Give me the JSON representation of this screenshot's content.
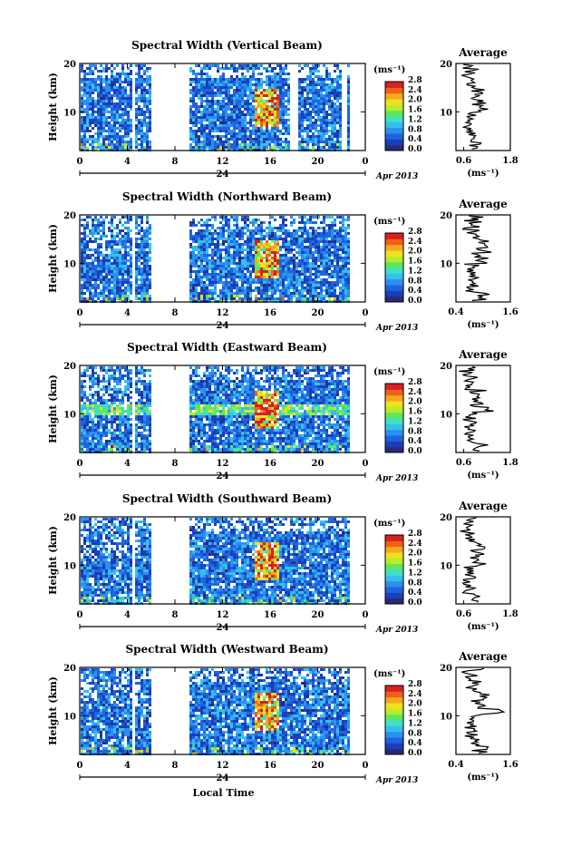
{
  "figure": {
    "xlabel": "Local Time",
    "date_label": "Apr 2013",
    "colorbar_unit": "(ms⁻¹)",
    "avg_title": "Average",
    "avg_xlabel": "(ms⁻¹)"
  },
  "chart_data": [
    {
      "type": "heatmap",
      "title": "Spectral Width (Vertical Beam)",
      "xlabel": "",
      "ylabel": "Height (km)",
      "x_ticks": [
        "0",
        "4",
        "8",
        "12",
        "16",
        "20",
        "0"
      ],
      "date_tick": "24",
      "y_ticks": [
        "10",
        "20"
      ],
      "xlim": [
        0,
        24
      ],
      "ylim": [
        2,
        20
      ],
      "colorbar_ticks": [
        "0.0",
        "0.4",
        "0.8",
        "1.2",
        "1.6",
        "2.0",
        "2.4",
        "2.8"
      ],
      "colorbar_range": [
        0,
        2.8
      ],
      "data_gaps_hours": [
        [
          4.2,
          4.6
        ],
        [
          5.8,
          9.0
        ],
        [
          17.6,
          18.2
        ],
        [
          21.8,
          22.4
        ]
      ],
      "average_profile": {
        "title": "Average",
        "x_ticks": [
          "0.6",
          "1.8"
        ],
        "y_ticks": [
          "10",
          "20"
        ],
        "xlim": [
          0.4,
          1.8
        ]
      }
    },
    {
      "type": "heatmap",
      "title": "Spectral Width (Northward Beam)",
      "xlabel": "",
      "ylabel": "Height (km)",
      "x_ticks": [
        "0",
        "4",
        "8",
        "12",
        "16",
        "20",
        "0"
      ],
      "date_tick": "24",
      "y_ticks": [
        "10",
        "20"
      ],
      "xlim": [
        0,
        24
      ],
      "ylim": [
        2,
        20
      ],
      "colorbar_ticks": [
        "0.0",
        "0.4",
        "0.8",
        "1.2",
        "1.6",
        "2.0",
        "2.4",
        "2.8"
      ],
      "colorbar_range": [
        0,
        2.8
      ],
      "data_gaps_hours": [
        [
          4.2,
          4.6
        ],
        [
          5.8,
          9.0
        ]
      ],
      "average_profile": {
        "title": "Average",
        "x_ticks": [
          "0.4",
          "1.6"
        ],
        "y_ticks": [
          "10",
          "20"
        ],
        "xlim": [
          0.4,
          1.6
        ]
      }
    },
    {
      "type": "heatmap",
      "title": "Spectral Width (Eastward Beam)",
      "xlabel": "",
      "ylabel": "Height (km)",
      "x_ticks": [
        "0",
        "4",
        "8",
        "12",
        "16",
        "20",
        "0"
      ],
      "date_tick": "24",
      "y_ticks": [
        "10",
        "20"
      ],
      "xlim": [
        0,
        24
      ],
      "ylim": [
        2,
        20
      ],
      "colorbar_ticks": [
        "0.0",
        "0.4",
        "0.8",
        "1.2",
        "1.6",
        "2.0",
        "2.4",
        "2.8"
      ],
      "colorbar_range": [
        0,
        2.8
      ],
      "data_gaps_hours": [
        [
          4.2,
          4.6
        ],
        [
          5.8,
          9.0
        ]
      ],
      "average_profile": {
        "title": "Average",
        "x_ticks": [
          "0.6",
          "1.8"
        ],
        "y_ticks": [
          "10",
          "20"
        ],
        "xlim": [
          0.4,
          1.8
        ]
      }
    },
    {
      "type": "heatmap",
      "title": "Spectral Width (Southward Beam)",
      "xlabel": "",
      "ylabel": "Height (km)",
      "x_ticks": [
        "0",
        "4",
        "8",
        "12",
        "16",
        "20",
        "0"
      ],
      "date_tick": "24",
      "y_ticks": [
        "10",
        "20"
      ],
      "xlim": [
        0,
        24
      ],
      "ylim": [
        2,
        20
      ],
      "colorbar_ticks": [
        "0.0",
        "0.4",
        "0.8",
        "1.2",
        "1.6",
        "2.0",
        "2.4",
        "2.8"
      ],
      "colorbar_range": [
        0,
        2.8
      ],
      "data_gaps_hours": [
        [
          4.2,
          4.6
        ],
        [
          5.8,
          9.0
        ]
      ],
      "average_profile": {
        "title": "Average",
        "x_ticks": [
          "0.6",
          "1.8"
        ],
        "y_ticks": [
          "10",
          "20"
        ],
        "xlim": [
          0.4,
          1.8
        ]
      }
    },
    {
      "type": "heatmap",
      "title": "Spectral Width (Westward Beam)",
      "xlabel": "",
      "ylabel": "Height (km)",
      "x_ticks": [
        "0",
        "4",
        "8",
        "12",
        "16",
        "20",
        "0"
      ],
      "date_tick": "24",
      "y_ticks": [
        "10",
        "20"
      ],
      "xlim": [
        0,
        24
      ],
      "ylim": [
        2,
        20
      ],
      "colorbar_ticks": [
        "0.0",
        "0.4",
        "0.8",
        "1.2",
        "1.6",
        "2.0",
        "2.4",
        "2.8"
      ],
      "colorbar_range": [
        0,
        2.8
      ],
      "data_gaps_hours": [
        [
          4.2,
          4.6
        ],
        [
          5.8,
          9.0
        ]
      ],
      "average_profile": {
        "title": "Average",
        "x_ticks": [
          "0.4",
          "1.6"
        ],
        "y_ticks": [
          "10",
          "20"
        ],
        "xlim": [
          0.4,
          1.6
        ]
      }
    }
  ]
}
